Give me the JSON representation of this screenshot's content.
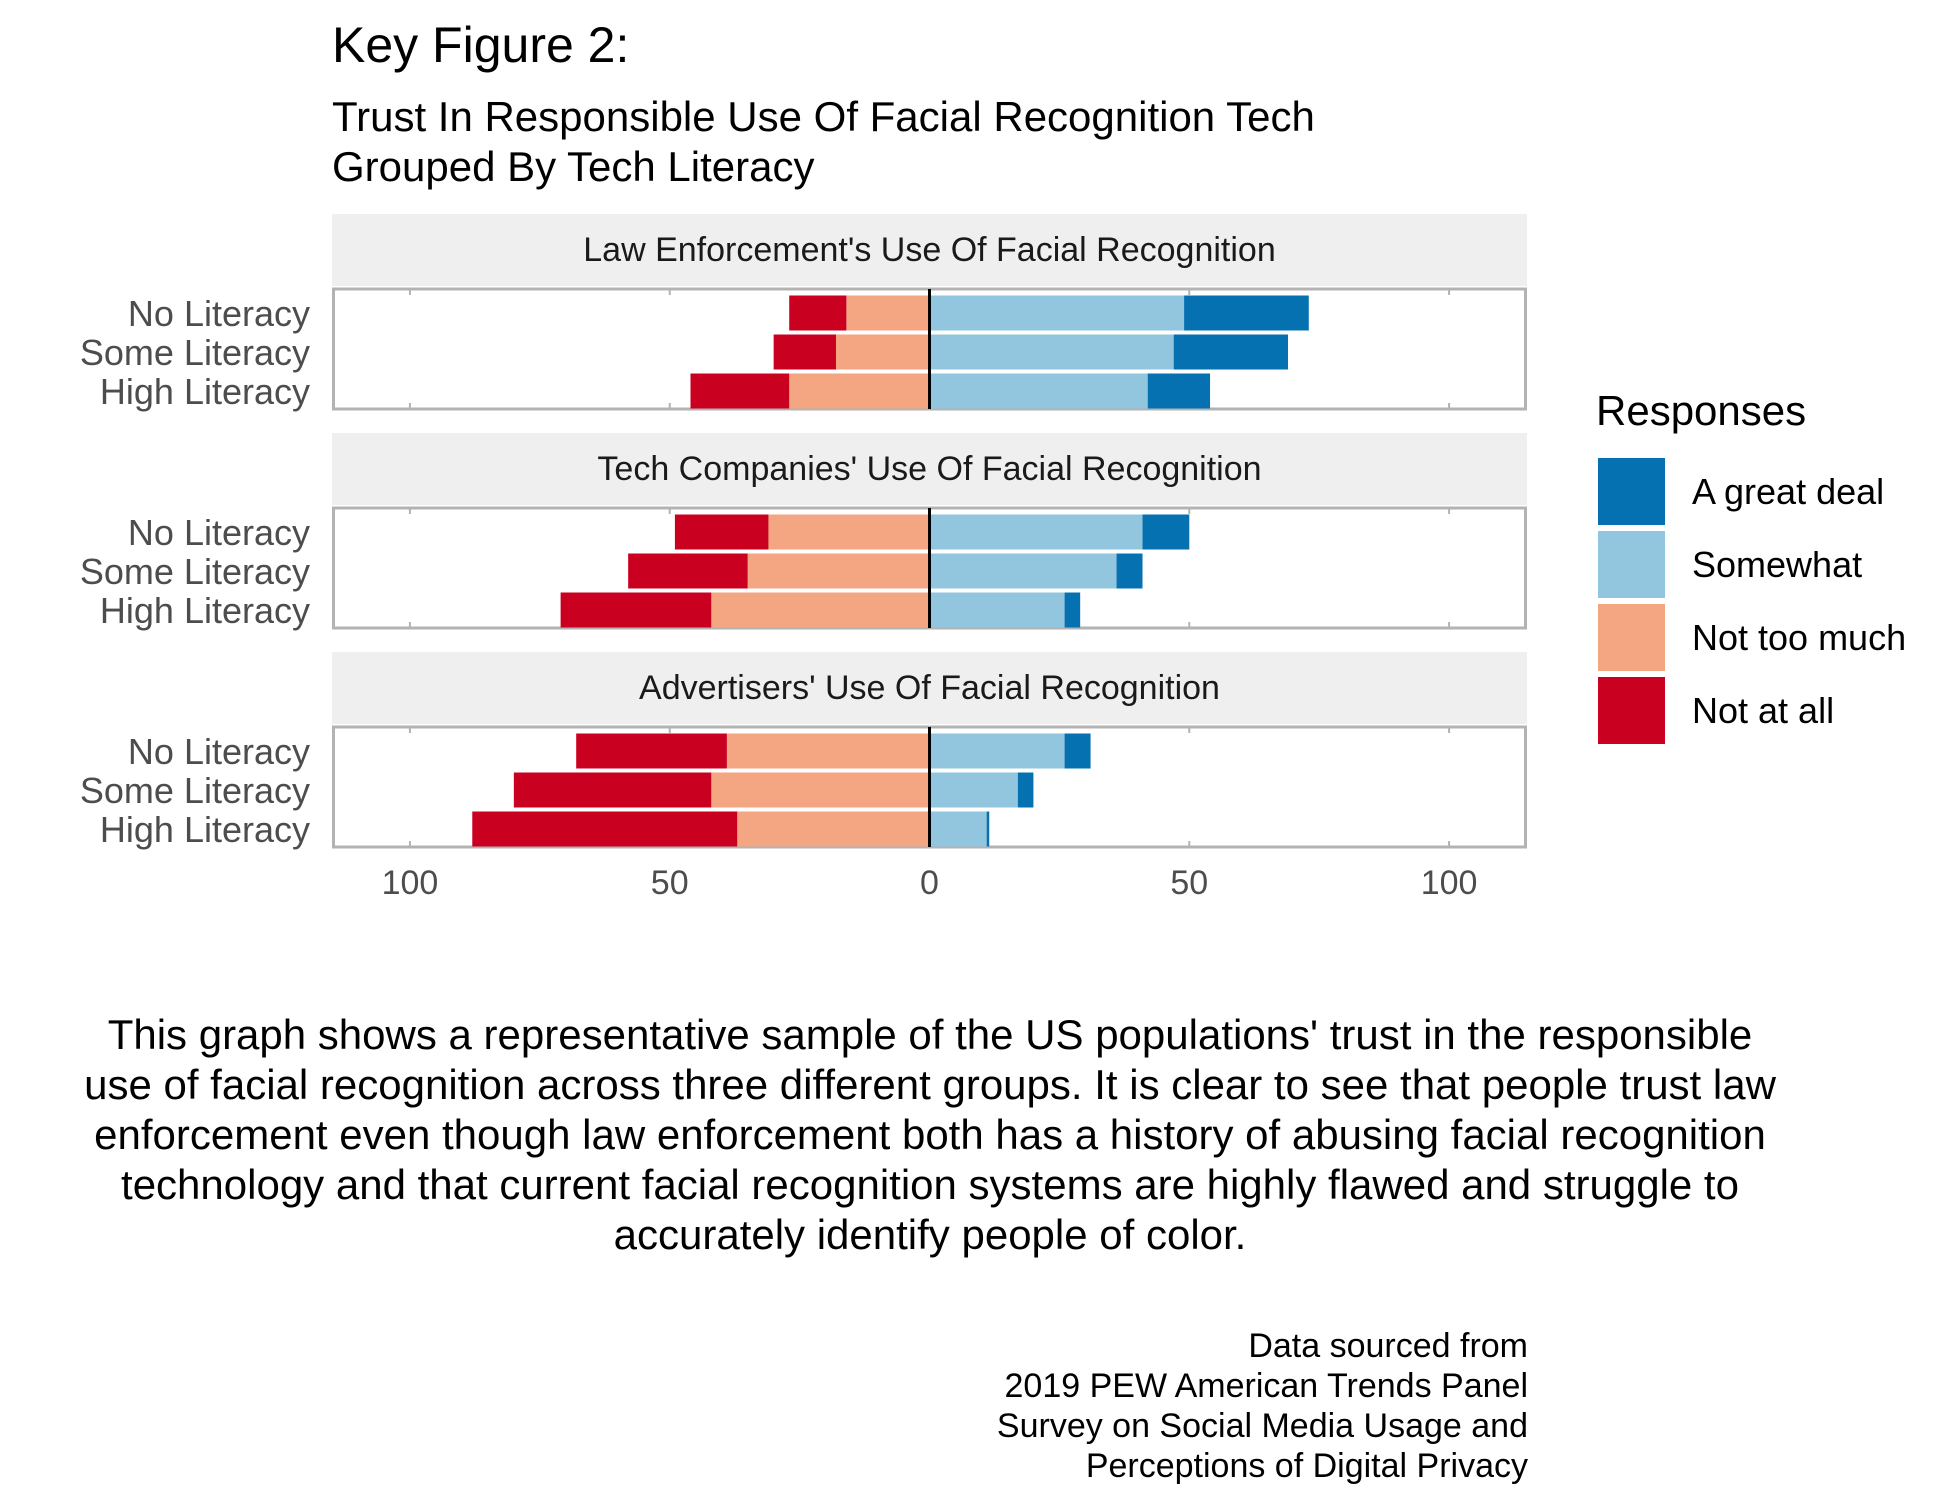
{
  "title": "Key Figure 2:",
  "subtitle_lines": [
    "Trust In Responsible Use Of Facial Recognition Tech",
    "Grouped By Tech Literacy"
  ],
  "caption": "This graph shows a representative sample of the US populations' trust in the responsible use of facial recognition across three different groups. It is clear to see that people trust law enforcement even though law enforcement both has a history of abusing facial recognition technology and that current facial recognition systems are highly flawed and struggle to accurately identify people of color.",
  "source_lines": [
    "Data sourced from",
    "2019 PEW American Trends Panel",
    "Survey on Social Media Usage and",
    "Perceptions of Digital Privacy"
  ],
  "chart_data": {
    "type": "bar",
    "orientation": "horizontal-diverging",
    "stacked": true,
    "xlim": [
      -115,
      115
    ],
    "x_ticks": [
      -100,
      -50,
      0,
      50,
      100
    ],
    "x_tick_labels": [
      "100",
      "50",
      "0",
      "50",
      "100"
    ],
    "categories": [
      "No Literacy",
      "Some Literacy",
      "High Literacy"
    ],
    "legend": {
      "title": "Responses",
      "position": "right",
      "entries": [
        "A great deal",
        "Somewhat",
        "Not too much",
        "Not at all"
      ]
    },
    "colors": {
      "A great deal": "#0571b0",
      "Somewhat": "#92c5de",
      "Not too much": "#f4a582",
      "Not at all": "#ca0020"
    },
    "panels": [
      {
        "title": "Law Enforcement's Use Of Facial Recognition",
        "series": [
          {
            "name": "A great deal",
            "values": [
              24,
              22,
              12
            ]
          },
          {
            "name": "Somewhat",
            "values": [
              49,
              47,
              42
            ]
          },
          {
            "name": "Not too much",
            "values": [
              -16,
              -18,
              -27
            ]
          },
          {
            "name": "Not at all",
            "values": [
              -11,
              -12,
              -19
            ]
          }
        ]
      },
      {
        "title": "Tech Companies' Use Of Facial Recognition",
        "series": [
          {
            "name": "A great deal",
            "values": [
              9,
              5,
              3
            ]
          },
          {
            "name": "Somewhat",
            "values": [
              41,
              36,
              26
            ]
          },
          {
            "name": "Not too much",
            "values": [
              -31,
              -35,
              -42
            ]
          },
          {
            "name": "Not at all",
            "values": [
              -18,
              -23,
              -29
            ]
          }
        ]
      },
      {
        "title": "Advertisers' Use Of Facial Recognition",
        "series": [
          {
            "name": "A great deal",
            "values": [
              5,
              3,
              0.5
            ]
          },
          {
            "name": "Somewhat",
            "values": [
              26,
              17,
              11
            ]
          },
          {
            "name": "Not too much",
            "values": [
              -39,
              -42,
              -37
            ]
          },
          {
            "name": "Not at all",
            "values": [
              -29,
              -38,
              -51
            ]
          }
        ]
      }
    ]
  }
}
